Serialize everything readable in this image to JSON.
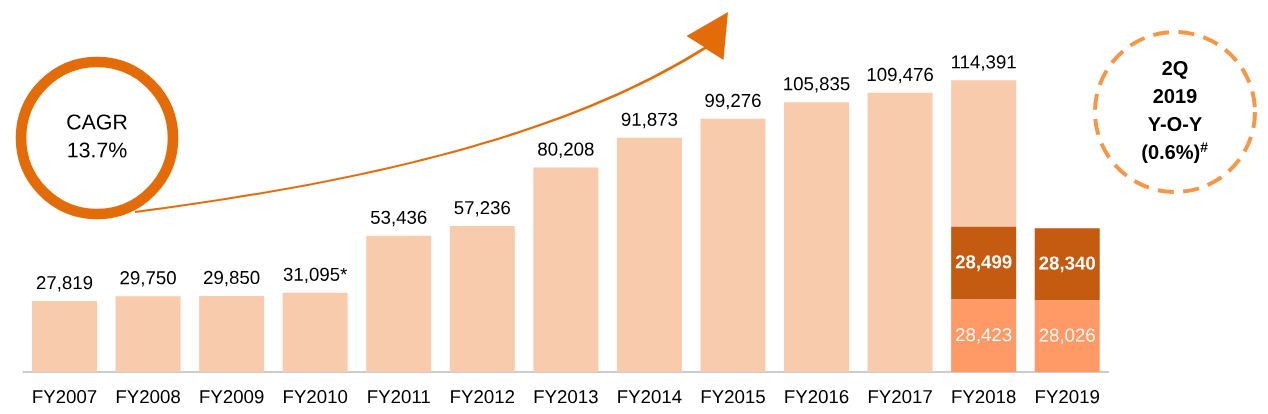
{
  "chart_data": {
    "type": "bar",
    "stacked": true,
    "tick_labels": "x",
    "categories": [
      "FY2007",
      "FY2008",
      "FY2009",
      "FY2010",
      "FY2011",
      "FY2012",
      "FY2013",
      "FY2014",
      "FY2015",
      "FY2016",
      "FY2017",
      "FY2018",
      "FY2019"
    ],
    "series": [
      {
        "color": "#ff9966",
        "values": [
          null,
          null,
          null,
          null,
          null,
          null,
          null,
          null,
          null,
          null,
          null,
          28423,
          28026
        ],
        "value_labels": [
          null,
          null,
          null,
          null,
          null,
          null,
          null,
          null,
          null,
          null,
          null,
          "28,423",
          "28,026"
        ]
      },
      {
        "color": "#c55a11",
        "values": [
          null,
          null,
          null,
          null,
          null,
          null,
          null,
          null,
          null,
          null,
          null,
          28499,
          28340
        ],
        "value_labels": [
          null,
          null,
          null,
          null,
          null,
          null,
          null,
          null,
          null,
          null,
          null,
          "28,499",
          "28,340"
        ]
      },
      {
        "color": "#f8cbad",
        "values": [
          27819,
          29750,
          29850,
          31095,
          53436,
          57236,
          80208,
          91873,
          99276,
          105835,
          109476,
          57469,
          null
        ],
        "value_labels": [
          "27,819",
          "29,750",
          "29,850",
          "31,095*",
          "53,436",
          "57,236",
          "80,208",
          "91,873",
          "99,276",
          "105,835",
          "109,476",
          null,
          null
        ]
      }
    ],
    "totals": [
      null,
      null,
      null,
      null,
      null,
      null,
      null,
      null,
      null,
      null,
      null,
      "114,391",
      null
    ],
    "annotations": [
      "CAGR",
      "13.7%",
      "2Q",
      "2019",
      "Y-O-Y",
      "(0.6%)$^{#}$"
    ]
  }
}
